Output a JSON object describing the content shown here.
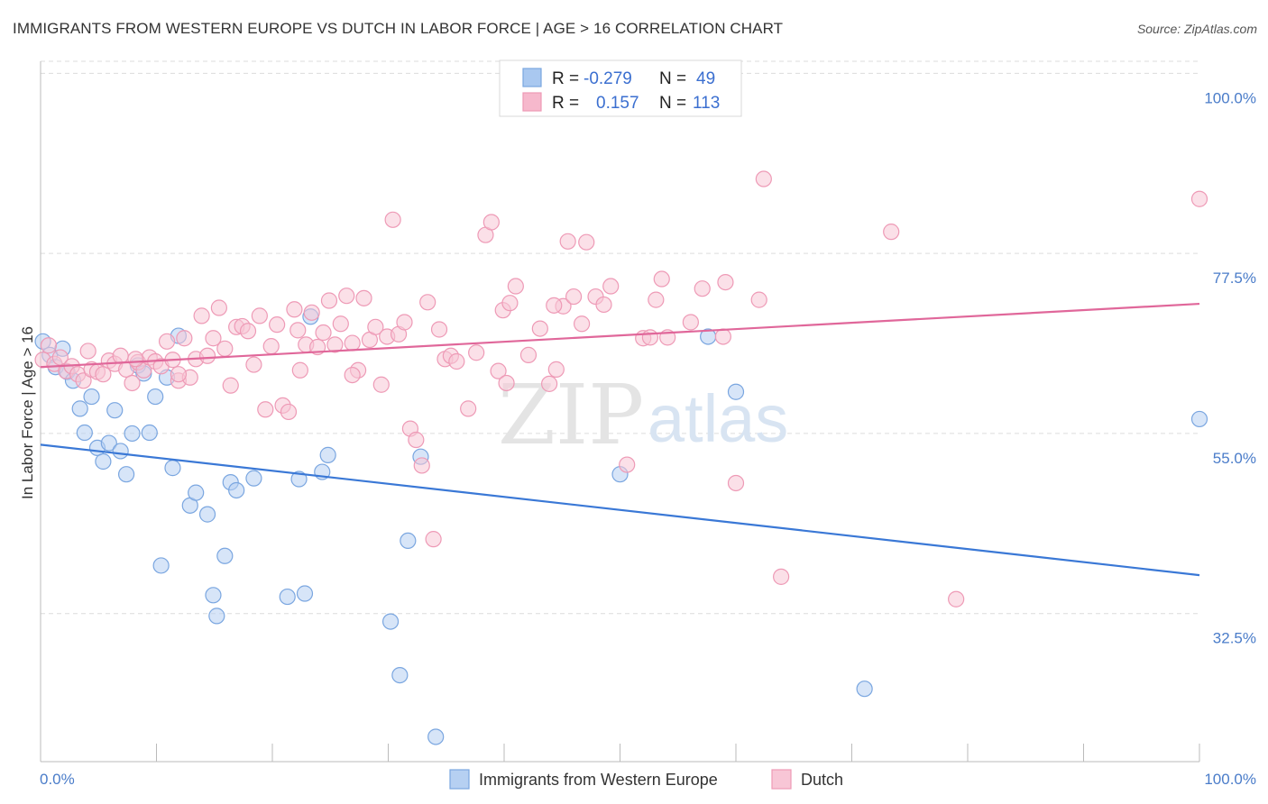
{
  "title": "IMMIGRANTS FROM WESTERN EUROPE VS DUTCH IN LABOR FORCE | AGE > 16 CORRELATION CHART",
  "source": "Source: ZipAtlas.com",
  "watermark": {
    "zip": "ZIP",
    "atlas": "atlas"
  },
  "legend": {
    "rows": [
      {
        "r_label": "R =",
        "r_value": "-0.279",
        "n_label": "N =",
        "n_value": "49",
        "color": "#a9c8f0"
      },
      {
        "r_label": "R =",
        "r_value": "0.157",
        "n_label": "N =",
        "n_value": "113",
        "color": "#f6b8cc"
      }
    ]
  },
  "chart_data": {
    "type": "scatter",
    "title": "IMMIGRANTS FROM WESTERN EUROPE VS DUTCH IN LABOR FORCE | AGE > 16 CORRELATION CHART",
    "xlabel": "",
    "ylabel": "In Labor Force | Age > 16",
    "xlim": [
      0,
      100
    ],
    "ylim": [
      14,
      101.5
    ],
    "x_tick_labels": [
      "0.0%",
      "100.0%"
    ],
    "y_ticks": [
      32.5,
      55.0,
      77.5,
      100.0
    ],
    "y_tick_labels": [
      "32.5%",
      "55.0%",
      "77.5%",
      "100.0%"
    ],
    "grid": true,
    "legend_position": "top-center",
    "series": [
      {
        "name": "Immigrants from Western Europe",
        "color": "#7aa6e0",
        "fill": "#b6d0f2",
        "trend": {
          "x": [
            0,
            100
          ],
          "y": [
            53.6,
            37.3
          ],
          "color": "#3a78d6"
        },
        "points": [
          [
            0.2,
            66.5
          ],
          [
            0.8,
            64.8
          ],
          [
            1.3,
            63.3
          ],
          [
            1.9,
            65.6
          ],
          [
            2.3,
            62.7
          ],
          [
            2.8,
            61.6
          ],
          [
            3.4,
            58.1
          ],
          [
            3.8,
            55.1
          ],
          [
            4.4,
            59.6
          ],
          [
            4.9,
            53.2
          ],
          [
            5.4,
            51.5
          ],
          [
            5.9,
            53.8
          ],
          [
            6.4,
            57.9
          ],
          [
            6.9,
            52.8
          ],
          [
            7.4,
            49.9
          ],
          [
            7.9,
            55.0
          ],
          [
            8.4,
            63.5
          ],
          [
            8.9,
            62.5
          ],
          [
            9.4,
            55.1
          ],
          [
            9.9,
            59.6
          ],
          [
            10.4,
            38.5
          ],
          [
            10.9,
            62.0
          ],
          [
            11.4,
            50.7
          ],
          [
            11.9,
            67.2
          ],
          [
            12.9,
            46.0
          ],
          [
            13.4,
            47.6
          ],
          [
            14.4,
            44.9
          ],
          [
            14.9,
            34.8
          ],
          [
            15.2,
            32.2
          ],
          [
            15.9,
            39.7
          ],
          [
            16.4,
            48.9
          ],
          [
            16.9,
            47.9
          ],
          [
            18.4,
            49.4
          ],
          [
            21.3,
            34.6
          ],
          [
            22.3,
            49.3
          ],
          [
            22.8,
            35.0
          ],
          [
            23.3,
            69.6
          ],
          [
            24.3,
            50.2
          ],
          [
            24.8,
            52.3
          ],
          [
            30.2,
            31.5
          ],
          [
            31.0,
            24.8
          ],
          [
            31.7,
            41.6
          ],
          [
            32.8,
            52.1
          ],
          [
            34.1,
            17.1
          ],
          [
            50.0,
            49.9
          ],
          [
            57.6,
            67.1
          ],
          [
            60.0,
            60.2
          ],
          [
            71.1,
            23.1
          ],
          [
            100.0,
            56.8
          ]
        ]
      },
      {
        "name": "Dutch",
        "color": "#ee9ab6",
        "fill": "#f8c6d6",
        "trend": {
          "x": [
            0,
            100
          ],
          "y": [
            63.3,
            71.2
          ],
          "color": "#e0679a"
        },
        "points": [
          [
            0.2,
            64.2
          ],
          [
            0.7,
            66.0
          ],
          [
            1.2,
            63.7
          ],
          [
            1.7,
            64.5
          ],
          [
            2.2,
            62.8
          ],
          [
            2.7,
            63.4
          ],
          [
            3.2,
            62.4
          ],
          [
            3.7,
            61.6
          ],
          [
            4.4,
            63.0
          ],
          [
            4.9,
            62.7
          ],
          [
            5.4,
            62.4
          ],
          [
            5.9,
            64.1
          ],
          [
            6.4,
            63.7
          ],
          [
            6.9,
            64.7
          ],
          [
            7.4,
            63.0
          ],
          [
            7.9,
            61.3
          ],
          [
            8.4,
            63.9
          ],
          [
            8.9,
            62.9
          ],
          [
            9.4,
            64.5
          ],
          [
            9.9,
            64.0
          ],
          [
            10.4,
            63.4
          ],
          [
            10.9,
            66.5
          ],
          [
            11.4,
            64.2
          ],
          [
            11.9,
            61.6
          ],
          [
            12.4,
            66.9
          ],
          [
            12.9,
            62.0
          ],
          [
            13.4,
            64.3
          ],
          [
            13.9,
            69.7
          ],
          [
            14.4,
            64.7
          ],
          [
            14.9,
            66.9
          ],
          [
            15.4,
            70.7
          ],
          [
            15.9,
            65.6
          ],
          [
            16.4,
            61.0
          ],
          [
            16.9,
            68.3
          ],
          [
            17.4,
            68.4
          ],
          [
            17.9,
            67.8
          ],
          [
            18.4,
            63.6
          ],
          [
            18.9,
            69.7
          ],
          [
            19.4,
            58.0
          ],
          [
            19.9,
            65.9
          ],
          [
            20.4,
            68.6
          ],
          [
            20.9,
            58.5
          ],
          [
            21.4,
            57.7
          ],
          [
            21.9,
            70.5
          ],
          [
            22.4,
            62.9
          ],
          [
            22.9,
            66.1
          ],
          [
            23.4,
            70.1
          ],
          [
            23.9,
            65.8
          ],
          [
            24.4,
            67.6
          ],
          [
            24.9,
            71.6
          ],
          [
            25.4,
            66.1
          ],
          [
            25.9,
            68.7
          ],
          [
            26.4,
            72.2
          ],
          [
            26.9,
            66.3
          ],
          [
            27.4,
            62.9
          ],
          [
            27.9,
            71.9
          ],
          [
            28.4,
            66.7
          ],
          [
            28.9,
            68.3
          ],
          [
            29.4,
            61.1
          ],
          [
            29.9,
            67.1
          ],
          [
            30.4,
            81.7
          ],
          [
            30.9,
            67.4
          ],
          [
            31.4,
            68.9
          ],
          [
            31.9,
            55.6
          ],
          [
            32.4,
            54.2
          ],
          [
            32.9,
            51.0
          ],
          [
            33.4,
            71.4
          ],
          [
            33.9,
            41.8
          ],
          [
            34.4,
            68.0
          ],
          [
            34.9,
            64.3
          ],
          [
            35.4,
            64.7
          ],
          [
            35.9,
            64.0
          ],
          [
            36.9,
            58.1
          ],
          [
            37.6,
            65.1
          ],
          [
            38.4,
            79.8
          ],
          [
            38.9,
            81.4
          ],
          [
            39.5,
            62.8
          ],
          [
            39.9,
            70.4
          ],
          [
            40.5,
            71.3
          ],
          [
            41.0,
            73.4
          ],
          [
            42.1,
            64.8
          ],
          [
            43.1,
            68.1
          ],
          [
            43.9,
            61.2
          ],
          [
            44.5,
            63.0
          ],
          [
            45.1,
            70.9
          ],
          [
            45.5,
            79.0
          ],
          [
            46.0,
            72.1
          ],
          [
            46.7,
            68.7
          ],
          [
            47.1,
            78.9
          ],
          [
            47.9,
            72.1
          ],
          [
            48.6,
            71.1
          ],
          [
            49.2,
            73.4
          ],
          [
            50.6,
            51.1
          ],
          [
            52.0,
            66.9
          ],
          [
            53.1,
            71.7
          ],
          [
            53.6,
            74.3
          ],
          [
            54.1,
            67.0
          ],
          [
            57.1,
            73.1
          ],
          [
            59.1,
            73.9
          ],
          [
            58.9,
            67.1
          ],
          [
            60.0,
            48.8
          ],
          [
            62.0,
            71.7
          ],
          [
            62.4,
            86.8
          ],
          [
            63.9,
            37.1
          ],
          [
            73.4,
            80.2
          ],
          [
            79.0,
            34.3
          ],
          [
            100.0,
            84.3
          ],
          [
            52.6,
            67.0
          ],
          [
            56.1,
            68.9
          ],
          [
            44.3,
            71.0
          ],
          [
            40.2,
            61.3
          ],
          [
            22.2,
            67.9
          ],
          [
            26.9,
            62.3
          ],
          [
            11.9,
            62.4
          ],
          [
            8.2,
            64.3
          ],
          [
            4.1,
            65.3
          ]
        ]
      }
    ]
  },
  "bottom_legend": [
    {
      "label": "Immigrants from Western Europe",
      "color": "#b6d0f2",
      "border": "#7aa6e0"
    },
    {
      "label": "Dutch",
      "color": "#f8c6d6",
      "border": "#ee9ab6"
    }
  ]
}
